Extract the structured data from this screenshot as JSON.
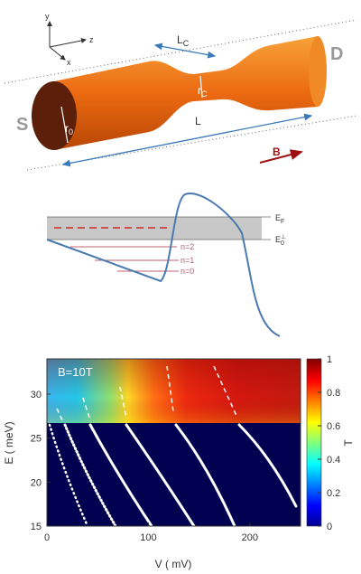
{
  "panel_a": {
    "axes": {
      "y": "y",
      "z": "z",
      "x": "x"
    },
    "lc": {
      "main": "L",
      "sub": "C"
    },
    "rc": {
      "main": "r",
      "sub": "C"
    },
    "r0": {
      "main": "r",
      "sub": "0"
    },
    "l": "L",
    "source": "S",
    "drain": "D",
    "field": "B"
  },
  "panel_b": {
    "ef": {
      "main": "E",
      "sub": "F"
    },
    "e0": {
      "main": "E",
      "sub": "0",
      "sup": "⊥"
    },
    "levels": [
      "n=2",
      "n=1",
      "n=0"
    ]
  },
  "panel_c": {
    "annotation": "B=10T",
    "xlabel": "V ( mV)",
    "ylabel": "E ( meV)",
    "colorbar_label": "T",
    "xlim": [
      0,
      250
    ],
    "xticks": [
      0,
      100,
      200
    ],
    "ylim": [
      15,
      34
    ],
    "yticks": [
      15,
      20,
      25,
      30
    ],
    "clim": [
      0,
      1
    ],
    "cticks": [
      0,
      0.2,
      0.4,
      0.6,
      0.8,
      1
    ]
  }
}
